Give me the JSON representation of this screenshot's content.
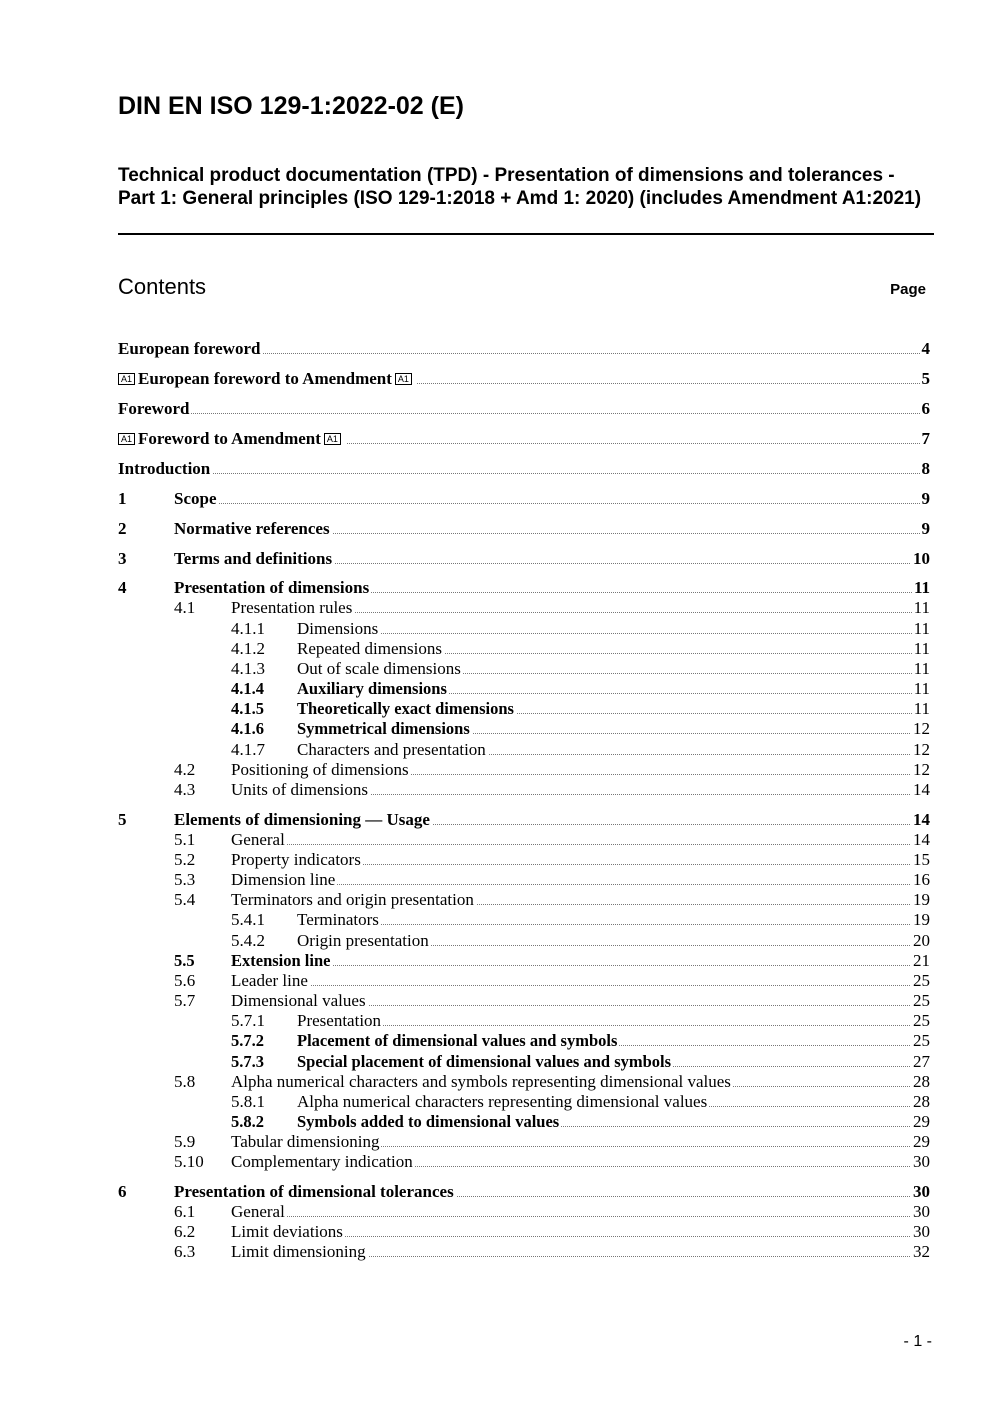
{
  "header": {
    "title": "DIN EN ISO 129-1:2022-02 (E)",
    "subtitle": "Technical product documentation (TPD) - Presentation of dimensions and tolerances - Part 1: General principles (ISO 129-1:2018 + Amd 1: 2020) (includes Amendment A1:2021)"
  },
  "toc": {
    "heading": "Contents",
    "page_label": "Page",
    "amend_open": "A1",
    "amend_close": "A1",
    "entries": [
      {
        "level": 0,
        "num": "",
        "title": "European foreword",
        "page": "4",
        "bold": true
      },
      {
        "level": 0,
        "num": "",
        "title": "European foreword to Amendment",
        "page": "5",
        "bold": true,
        "amendment": true
      },
      {
        "level": 0,
        "num": "",
        "title": "Foreword",
        "page": "6",
        "bold": true
      },
      {
        "level": 0,
        "num": "",
        "title": "Foreword to Amendment",
        "page": "7",
        "bold": true,
        "amendment": true
      },
      {
        "level": 0,
        "num": "",
        "title": "Introduction",
        "page": "8",
        "bold": true
      },
      {
        "level": 1,
        "num": "1",
        "title": "Scope",
        "page": "9",
        "bold": true
      },
      {
        "level": 1,
        "num": "2",
        "title": "Normative references",
        "page": "9",
        "bold": true
      },
      {
        "level": 1,
        "num": "3",
        "title": "Terms and definitions",
        "page": "10",
        "bold": true
      },
      {
        "level": 1,
        "num": "4",
        "title": "Presentation of dimensions",
        "page": "11",
        "bold": true
      },
      {
        "level": 2,
        "num": "4.1",
        "title": "Presentation rules",
        "page": "11"
      },
      {
        "level": 3,
        "num": "4.1.1",
        "title": "Dimensions",
        "page": "11"
      },
      {
        "level": 3,
        "num": "4.1.2",
        "title": "Repeated dimensions",
        "page": "11"
      },
      {
        "level": 3,
        "num": "4.1.3",
        "title": "Out of scale dimensions",
        "page": "11"
      },
      {
        "level": 3,
        "num": "4.1.4",
        "title": "Auxiliary dimensions",
        "page": "11",
        "semibold": true
      },
      {
        "level": 3,
        "num": "4.1.5",
        "title": "Theoretically exact dimensions",
        "page": "11",
        "semibold": true
      },
      {
        "level": 3,
        "num": "4.1.6",
        "title": "Symmetrical dimensions",
        "page": "12",
        "semibold": true
      },
      {
        "level": 3,
        "num": "4.1.7",
        "title": "Characters and presentation",
        "page": "12"
      },
      {
        "level": 2,
        "num": "4.2",
        "title": "Positioning of dimensions",
        "page": "12"
      },
      {
        "level": 2,
        "num": "4.3",
        "title": "Units of dimensions",
        "page": "14"
      },
      {
        "level": 1,
        "num": "5",
        "title": "Elements of dimensioning — Usage",
        "page": "14",
        "bold": true
      },
      {
        "level": 2,
        "num": "5.1",
        "title": "General",
        "page": "14"
      },
      {
        "level": 2,
        "num": "5.2",
        "title": "Property indicators",
        "page": "15"
      },
      {
        "level": 2,
        "num": "5.3",
        "title": "Dimension line",
        "page": "16"
      },
      {
        "level": 2,
        "num": "5.4",
        "title": "Terminators and origin presentation",
        "page": "19"
      },
      {
        "level": 3,
        "num": "5.4.1",
        "title": "Terminators",
        "page": "19"
      },
      {
        "level": 3,
        "num": "5.4.2",
        "title": "Origin presentation",
        "page": "20"
      },
      {
        "level": 2,
        "num": "5.5",
        "title": "Extension line",
        "page": "21",
        "semibold": true
      },
      {
        "level": 2,
        "num": "5.6",
        "title": "Leader line",
        "page": "25"
      },
      {
        "level": 2,
        "num": "5.7",
        "title": "Dimensional values",
        "page": "25"
      },
      {
        "level": 3,
        "num": "5.7.1",
        "title": "Presentation",
        "page": "25"
      },
      {
        "level": 3,
        "num": "5.7.2",
        "title": "Placement of dimensional values and symbols",
        "page": "25",
        "semibold": true
      },
      {
        "level": 3,
        "num": "5.7.3",
        "title": "Special placement of dimensional values and symbols",
        "page": "27",
        "semibold": true
      },
      {
        "level": 2,
        "num": "5.8",
        "title": "Alpha numerical characters and symbols representing dimensional values",
        "page": "28"
      },
      {
        "level": 3,
        "num": "5.8.1",
        "title": "Alpha numerical characters representing dimensional values",
        "page": "28"
      },
      {
        "level": 3,
        "num": "5.8.2",
        "title": "Symbols added to dimensional values",
        "page": "29",
        "semibold": true
      },
      {
        "level": 2,
        "num": "5.9",
        "title": "Tabular dimensioning",
        "page": "29"
      },
      {
        "level": 2,
        "num": "5.10",
        "title": "Complementary indication",
        "page": "30"
      },
      {
        "level": 1,
        "num": "6",
        "title": "Presentation of dimensional tolerances",
        "page": "30",
        "bold": true
      },
      {
        "level": 2,
        "num": "6.1",
        "title": "General",
        "page": "30"
      },
      {
        "level": 2,
        "num": "6.2",
        "title": "Limit deviations",
        "page": "30"
      },
      {
        "level": 2,
        "num": "6.3",
        "title": "Limit dimensioning",
        "page": "32"
      }
    ]
  },
  "footer": {
    "page_number": "- 1 -"
  }
}
